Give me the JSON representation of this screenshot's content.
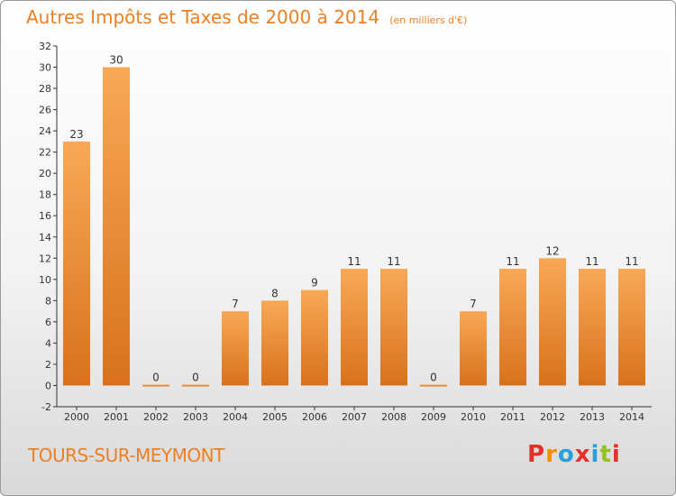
{
  "header": {
    "title": "Autres Impôts et Taxes de 2000 à 2014",
    "unit": "(en milliers d'€)"
  },
  "footer": {
    "town": "TOURS-SUR-MEYMONT",
    "logo_text": "Proxiti",
    "logo_colors": [
      "#e4312b",
      "#f39200",
      "#2a9fd8",
      "#e4312b",
      "#2a9fd8",
      "#95c11f",
      "#e4312b"
    ]
  },
  "colors": {
    "accent": "#ee7f22",
    "bar_light": "#f8a955",
    "bar_dark": "#d9711c"
  },
  "chart_data": {
    "type": "bar",
    "title": "Autres Impôts et Taxes de 2000 à 2014",
    "categories": [
      "2000",
      "2001",
      "2002",
      "2003",
      "2004",
      "2005",
      "2006",
      "2007",
      "2008",
      "2009",
      "2010",
      "2011",
      "2012",
      "2013",
      "2014"
    ],
    "values": [
      23,
      30,
      0,
      0,
      7,
      8,
      9,
      11,
      11,
      0,
      7,
      11,
      12,
      11,
      11
    ],
    "xlabel": "",
    "ylabel": "",
    "ylim": [
      -2,
      32
    ],
    "yticks": [
      -2,
      0,
      2,
      4,
      6,
      8,
      10,
      12,
      14,
      16,
      18,
      20,
      22,
      24,
      26,
      28,
      30,
      32
    ],
    "grid": false
  }
}
